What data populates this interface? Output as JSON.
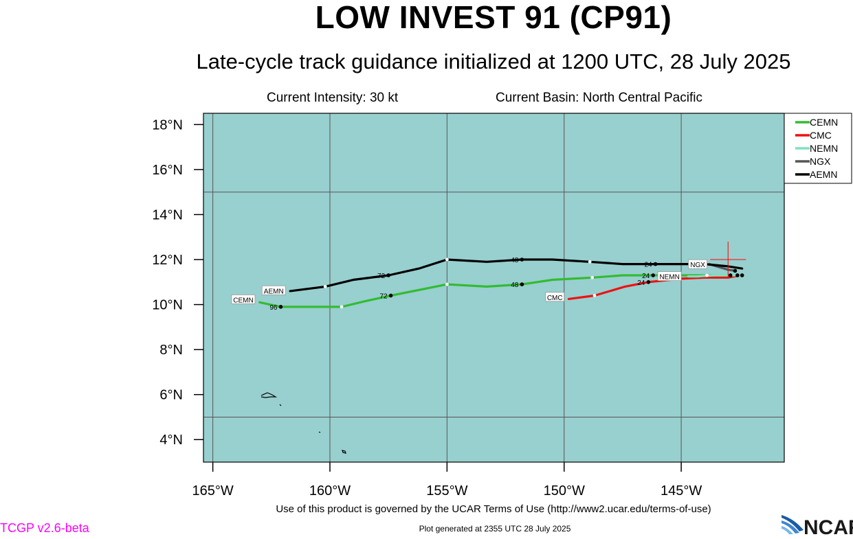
{
  "title": "LOW INVEST 91 (CP91)",
  "subtitle": "Late-cycle track guidance initialized at 1200 UTC, 28 July 2025",
  "current_intensity": "Current Intensity: 30 kt",
  "current_basin": "Current Basin: North Central Pacific",
  "footer_terms": "Use of this product is governed by the UCAR Terms of Use (http://www2.ucar.edu/terms-of-use)",
  "footer_generated": "Plot generated at 2355 UTC   28 July 2025",
  "version": "TCGP v2.6-beta",
  "logo_text": "NCAR",
  "colors": {
    "ocean": "#98cfcf",
    "version": "#ff00ff",
    "current_position": "#ff0000"
  },
  "chart_data": {
    "type": "line",
    "lon_range": [
      -165.4,
      -140.6
    ],
    "lat_range": [
      3.0,
      18.5
    ],
    "x_ticks": [
      -165,
      -160,
      -155,
      -150,
      -145
    ],
    "x_tick_labels": [
      "165°W",
      "160°W",
      "155°W",
      "150°W",
      "145°W"
    ],
    "y_ticks": [
      4,
      6,
      8,
      10,
      12,
      14,
      16,
      18
    ],
    "y_tick_labels": [
      "4°N",
      "6°N",
      "8°N",
      "10°N",
      "12°N",
      "14°N",
      "16°N",
      "18°N"
    ],
    "grid": true,
    "legend_position": "top-right",
    "current_position": {
      "lon": -143.0,
      "lat": 12.0
    },
    "series": [
      {
        "name": "CEMN",
        "color": "#33bb33",
        "points": [
          [
            -142.5,
            11.3
          ],
          [
            -142.8,
            11.3
          ],
          [
            -143.2,
            11.3
          ],
          [
            -144.5,
            11.3
          ],
          [
            -146.2,
            11.3
          ],
          [
            -147.5,
            11.3
          ],
          [
            -148.8,
            11.2
          ],
          [
            -150.5,
            11.1
          ],
          [
            -151.8,
            10.9
          ],
          [
            -153.3,
            10.8
          ],
          [
            -155.0,
            10.9
          ],
          [
            -157.4,
            10.4
          ],
          [
            -158.5,
            10.15
          ],
          [
            -159.5,
            9.9
          ],
          [
            -162.1,
            9.9
          ],
          [
            -163.0,
            10.1
          ]
        ],
        "markers": [
          {
            "lon": -146.2,
            "lat": 11.3,
            "label": "24"
          },
          {
            "lon": -151.8,
            "lat": 10.9,
            "label": "48"
          },
          {
            "lon": -157.4,
            "lat": 10.4,
            "label": "72"
          },
          {
            "lon": -162.1,
            "lat": 9.9,
            "label": "96"
          }
        ],
        "open_markers": [
          [
            -148.8,
            11.2
          ],
          [
            -155.0,
            10.9
          ],
          [
            -159.5,
            9.9
          ]
        ],
        "tag": {
          "lon": -163.2,
          "lat": 10.22,
          "text": "CEMN"
        }
      },
      {
        "name": "CMC",
        "color": "#ee1111",
        "points": [
          [
            -142.5,
            11.3
          ],
          [
            -143.0,
            11.2
          ],
          [
            -144.0,
            11.2
          ],
          [
            -145.0,
            11.15
          ],
          [
            -146.4,
            11.0
          ],
          [
            -147.4,
            10.8
          ],
          [
            -148.7,
            10.4
          ],
          [
            -149.8,
            10.25
          ]
        ],
        "markers": [
          {
            "lon": -146.4,
            "lat": 11.0,
            "label": "24"
          }
        ],
        "open_markers": [
          [
            -148.7,
            10.4
          ]
        ],
        "tag": {
          "lon": -150.0,
          "lat": 10.33,
          "text": "CMC"
        }
      },
      {
        "name": "NEMN",
        "color": "#80e0c0",
        "points": [
          [
            -142.5,
            11.3
          ],
          [
            -143.0,
            11.3
          ],
          [
            -143.6,
            11.3
          ],
          [
            -144.3,
            11.25
          ],
          [
            -144.7,
            11.25
          ]
        ],
        "markers": [],
        "open_markers": [
          [
            -143.9,
            11.3
          ]
        ],
        "tag": {
          "lon": -145.0,
          "lat": 11.25,
          "text": "NEMN"
        }
      },
      {
        "name": "NGX",
        "color": "#555555",
        "points": [
          [
            -142.7,
            11.5
          ],
          [
            -143.0,
            11.55
          ],
          [
            -143.5,
            11.7
          ],
          [
            -143.8,
            11.8
          ]
        ],
        "markers": [
          {
            "lon": -142.7,
            "lat": 11.5,
            "label": ""
          }
        ],
        "open_markers": [],
        "tag": {
          "lon": -143.9,
          "lat": 11.78,
          "text": "NGX"
        }
      },
      {
        "name": "AEMN",
        "color": "#000000",
        "points": [
          [
            -142.4,
            11.6
          ],
          [
            -143.0,
            11.7
          ],
          [
            -144.0,
            11.8
          ],
          [
            -146.1,
            11.8
          ],
          [
            -147.5,
            11.8
          ],
          [
            -148.9,
            11.9
          ],
          [
            -150.5,
            12.0
          ],
          [
            -151.8,
            12.0
          ],
          [
            -153.3,
            11.9
          ],
          [
            -155.0,
            12.0
          ],
          [
            -156.2,
            11.6
          ],
          [
            -157.5,
            11.3
          ],
          [
            -159.0,
            11.1
          ],
          [
            -160.2,
            10.8
          ],
          [
            -161.7,
            10.6
          ]
        ],
        "markers": [
          {
            "lon": -146.1,
            "lat": 11.8,
            "label": "24"
          },
          {
            "lon": -151.8,
            "lat": 12.0,
            "label": "48"
          },
          {
            "lon": -157.5,
            "lat": 11.3,
            "label": "72"
          }
        ],
        "open_markers": [
          [
            -148.9,
            11.9
          ],
          [
            -155.0,
            12.0
          ],
          [
            -160.2,
            10.8
          ]
        ],
        "tag": {
          "lon": -161.9,
          "lat": 10.62,
          "text": "AEMN"
        }
      }
    ],
    "initial_points": [
      [
        -142.6,
        11.3
      ],
      [
        -142.4,
        11.3
      ],
      [
        -142.9,
        11.3
      ]
    ]
  }
}
